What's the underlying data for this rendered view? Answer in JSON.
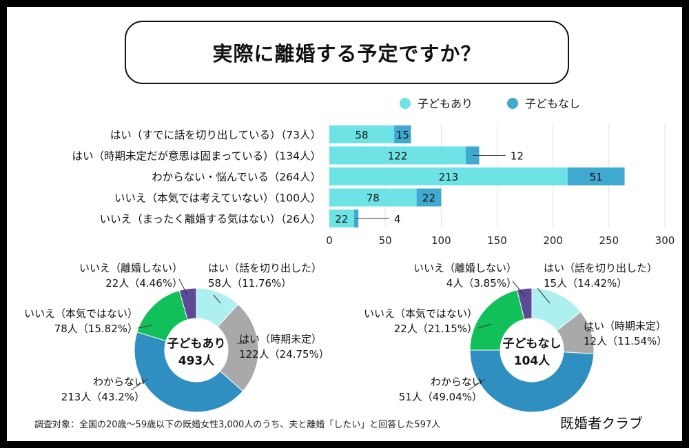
{
  "title": "実際に離婚する予定ですか？",
  "colors": {
    "with_children": "#6ee3e6",
    "without_children": "#3fa9cf"
  },
  "chart_data": [
    {
      "type": "bar",
      "orientation": "horizontal",
      "stacked": true,
      "categories": [
        "はい（すでに話を切り出している）（73人）",
        "はい（時期未定だが意思は固まっている）（134人）",
        "わからない・悩んでいる（264人）",
        "いいえ（本気では考えていない）（100人）",
        "いいえ（まったく離婚する気はない）（26人）"
      ],
      "series": [
        {
          "name": "子どもあり",
          "values": [
            58,
            122,
            213,
            78,
            22
          ]
        },
        {
          "name": "子どもなし",
          "values": [
            15,
            12,
            51,
            22,
            4
          ]
        }
      ],
      "xlim": [
        0,
        300
      ],
      "xticks": [
        0,
        50,
        100,
        150,
        200,
        250,
        300
      ],
      "legend_position": "top-right",
      "grid": "vertical"
    },
    {
      "type": "pie",
      "donut": true,
      "center_label": [
        "子どもあり",
        "493人"
      ],
      "slices": [
        {
          "label": "はい（話を切り出した）",
          "value_text": "58人（11.76%）",
          "value": 58,
          "color": "#aef0f0"
        },
        {
          "label": "はい（時期未定）",
          "value_text": "122人（24.75%）",
          "value": 122,
          "color": "#a9a9a9"
        },
        {
          "label": "わからない",
          "value_text": "213人（43.2%）",
          "value": 213,
          "color": "#2f8fc0"
        },
        {
          "label": "いいえ（本気ではない）",
          "value_text": "78人（15.82%）",
          "value": 78,
          "color": "#12c05a"
        },
        {
          "label": "いいえ（離婚しない）",
          "value_text": "22人（4.46%）",
          "value": 22,
          "color": "#5c4a96"
        }
      ]
    },
    {
      "type": "pie",
      "donut": true,
      "center_label": [
        "子どもなし",
        "104人"
      ],
      "slices": [
        {
          "label": "はい（話を切り出した）",
          "value_text": "15人（14.42%）",
          "value": 15,
          "color": "#aef0f0"
        },
        {
          "label": "はい（時期未定）",
          "value_text": "12人（11.54%）",
          "value": 12,
          "color": "#a9a9a9"
        },
        {
          "label": "わからない",
          "value_text": "51人（49.04%）",
          "value": 51,
          "color": "#2f8fc0"
        },
        {
          "label": "いいえ（本気ではない）",
          "value_text": "22人（21.15%）",
          "value": 22,
          "color": "#12c05a"
        },
        {
          "label": "いいえ（離婚しない）",
          "value_text": "4人（3.85%）",
          "value": 4,
          "color": "#5c4a96"
        }
      ]
    }
  ],
  "footnote": "調査対象：全国の20歳〜59歳以下の既婚女性3,000人のうち、夫と離婚「したい」と回答した597人",
  "brand": "既婚者クラブ"
}
